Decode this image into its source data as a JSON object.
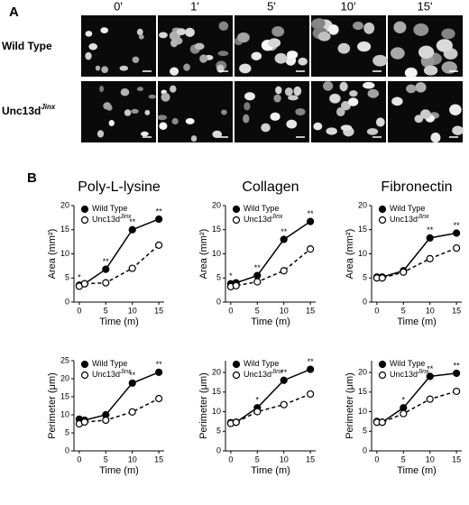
{
  "panel_a": {
    "label": "A",
    "columns": [
      "0'",
      "1'",
      "5'",
      "10'",
      "15'"
    ],
    "rows": [
      {
        "name": "Wild Type"
      },
      {
        "name": "Unc13d",
        "name_superscript": "Jinx"
      }
    ]
  },
  "panel_b": {
    "label": "B"
  },
  "chart_data": [
    {
      "type": "line",
      "title": "Poly-L-lysine",
      "x_label": "Time (m)",
      "y_label": "Area (mm²)",
      "x": [
        0,
        1,
        5,
        10,
        15
      ],
      "xlim": [
        -1,
        16
      ],
      "xticks": [
        0,
        5,
        10,
        15
      ],
      "ylim": [
        0,
        20
      ],
      "yticks": [
        0,
        5,
        10,
        15,
        20
      ],
      "series": [
        {
          "name": "Wild Type",
          "color": "#000000",
          "values": [
            3.5,
            3.8,
            6.8,
            15.0,
            17.2
          ]
        },
        {
          "name": "Unc13d",
          "name_superscript": "Jinx",
          "color": "#000000",
          "values": [
            3.3,
            3.8,
            4.0,
            7.0,
            11.8
          ]
        }
      ],
      "annotations": [
        {
          "x": 0,
          "text": "*"
        },
        {
          "x": 5,
          "text": "**"
        },
        {
          "x": 10,
          "text": "**"
        },
        {
          "x": 15,
          "text": "**"
        }
      ]
    },
    {
      "type": "line",
      "title": "Collagen",
      "x_label": "Time (m)",
      "y_label": "Area (mm²)",
      "x": [
        0,
        1,
        5,
        10,
        15
      ],
      "xlim": [
        -1,
        16
      ],
      "xticks": [
        0,
        5,
        10,
        15
      ],
      "ylim": [
        0,
        20
      ],
      "yticks": [
        0,
        5,
        10,
        15,
        20
      ],
      "series": [
        {
          "name": "Wild Type",
          "color": "#000000",
          "values": [
            3.8,
            4.0,
            5.5,
            13.0,
            16.7
          ]
        },
        {
          "name": "Unc13d",
          "name_superscript": "Jinx",
          "color": "#000000",
          "values": [
            3.2,
            3.4,
            4.2,
            6.5,
            11.0
          ]
        }
      ],
      "annotations": [
        {
          "x": 0,
          "text": "*"
        },
        {
          "x": 5,
          "text": "**"
        },
        {
          "x": 10,
          "text": "**"
        },
        {
          "x": 15,
          "text": "**"
        }
      ]
    },
    {
      "type": "line",
      "title": "Fibronectin",
      "x_label": "Time (m)",
      "y_label": "Area (mm²)",
      "x": [
        0,
        1,
        5,
        10,
        15
      ],
      "xlim": [
        -1,
        16
      ],
      "xticks": [
        0,
        5,
        10,
        15
      ],
      "ylim": [
        0,
        20
      ],
      "yticks": [
        0,
        5,
        10,
        15,
        20
      ],
      "series": [
        {
          "name": "Wild Type",
          "color": "#000000",
          "values": [
            5.2,
            5.2,
            6.5,
            13.3,
            14.3
          ]
        },
        {
          "name": "Unc13d",
          "name_superscript": "Jinx",
          "color": "#000000",
          "values": [
            5.0,
            5.0,
            6.2,
            9.0,
            11.2
          ]
        }
      ],
      "annotations": [
        {
          "x": 10,
          "text": "**"
        },
        {
          "x": 15,
          "text": "**"
        }
      ]
    },
    {
      "type": "line",
      "x_label": "Time (m)",
      "y_label": "Perimeter (μm)",
      "x": [
        0,
        1,
        5,
        10,
        15
      ],
      "xlim": [
        -1,
        16
      ],
      "xticks": [
        0,
        5,
        10,
        15
      ],
      "ylim": [
        0,
        25
      ],
      "yticks": [
        0,
        5,
        10,
        15,
        20,
        25
      ],
      "series": [
        {
          "name": "Wild Type",
          "color": "#000000",
          "values": [
            8.8,
            8.5,
            10.0,
            18.8,
            21.8
          ]
        },
        {
          "name": "Unc13d",
          "name_superscript": "Jinx",
          "color": "#000000",
          "values": [
            7.5,
            8.0,
            8.5,
            10.8,
            14.5
          ]
        }
      ],
      "annotations": [
        {
          "x": 10,
          "text": "**"
        },
        {
          "x": 15,
          "text": "**"
        }
      ]
    },
    {
      "type": "line",
      "x_label": "Time (m)",
      "y_label": "Perimeter (μm)",
      "x": [
        0,
        1,
        5,
        10,
        15
      ],
      "xlim": [
        -1,
        16
      ],
      "xticks": [
        0,
        5,
        10,
        15
      ],
      "ylim": [
        0,
        23
      ],
      "yticks": [
        0,
        5,
        10,
        15,
        20
      ],
      "series": [
        {
          "name": "Wild Type",
          "color": "#000000",
          "values": [
            7.2,
            7.3,
            11.0,
            18.0,
            20.8
          ]
        },
        {
          "name": "Unc13d",
          "name_superscript": "Jinx",
          "color": "#000000",
          "values": [
            7.0,
            7.3,
            10.0,
            11.8,
            14.5
          ]
        }
      ],
      "annotations": [
        {
          "x": 5,
          "text": "*"
        },
        {
          "x": 10,
          "text": "**"
        },
        {
          "x": 15,
          "text": "**"
        }
      ]
    },
    {
      "type": "line",
      "x_label": "Time (m)",
      "y_label": "Perimeter (μm)",
      "x": [
        0,
        1,
        5,
        10,
        15
      ],
      "xlim": [
        -1,
        16
      ],
      "xticks": [
        0,
        5,
        10,
        15
      ],
      "ylim": [
        0,
        23
      ],
      "yticks": [
        0,
        5,
        10,
        15,
        20
      ],
      "series": [
        {
          "name": "Wild Type",
          "color": "#000000",
          "values": [
            7.5,
            7.3,
            11.0,
            19.0,
            19.8
          ]
        },
        {
          "name": "Unc13d",
          "name_superscript": "Jinx",
          "color": "#000000",
          "values": [
            7.3,
            7.3,
            9.5,
            13.2,
            15.2
          ]
        }
      ],
      "annotations": [
        {
          "x": 5,
          "text": "*"
        },
        {
          "x": 10,
          "text": "**"
        },
        {
          "x": 15,
          "text": "**"
        }
      ]
    }
  ]
}
